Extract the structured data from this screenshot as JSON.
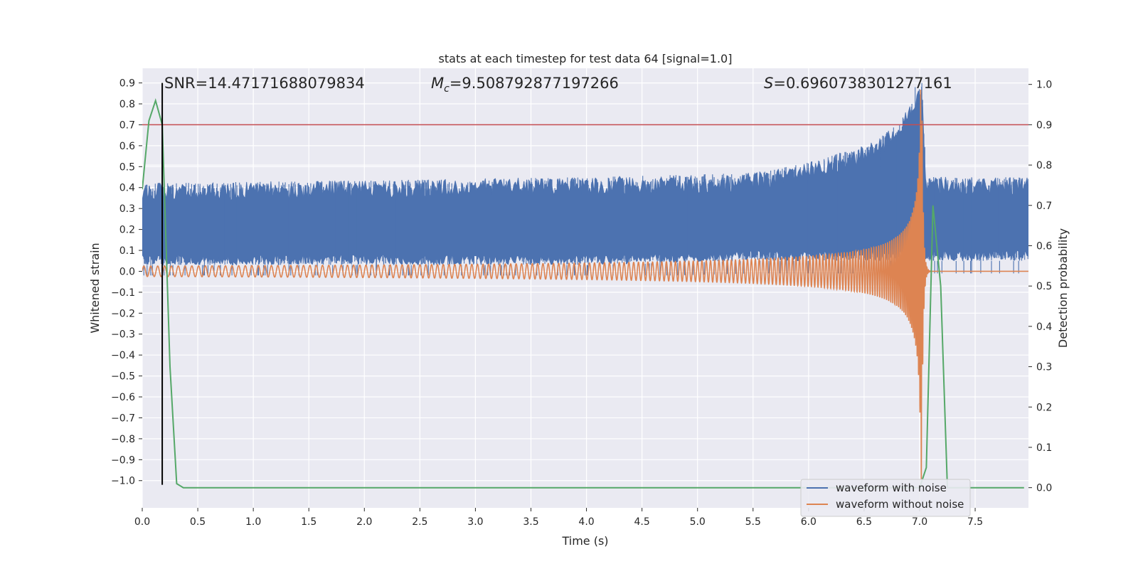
{
  "chart_data": {
    "type": "line",
    "title": "stats at each timestep for test data 64 [signal=1.0]",
    "xlabel": "Time (s)",
    "ylabel": "Whitened strain",
    "y2label": "Detection probability",
    "xlim": [
      0.0,
      7.98
    ],
    "ylim": [
      -1.13,
      0.97
    ],
    "y2lim": [
      -0.05,
      1.04
    ],
    "xticks": [
      0.0,
      0.5,
      1.0,
      1.5,
      2.0,
      2.5,
      3.0,
      3.5,
      4.0,
      4.5,
      5.0,
      5.5,
      6.0,
      6.5,
      7.0,
      7.5
    ],
    "xtick_labels": [
      "0.0",
      "0.5",
      "1.0",
      "1.5",
      "2.0",
      "2.5",
      "3.0",
      "3.5",
      "4.0",
      "4.5",
      "5.0",
      "5.5",
      "6.0",
      "6.5",
      "7.0",
      "7.5"
    ],
    "yticks": [
      0.9,
      0.8,
      0.7,
      0.6,
      0.5,
      0.4,
      0.3,
      0.2,
      0.1,
      0.0,
      -0.1,
      -0.2,
      -0.3,
      -0.4,
      -0.5,
      -0.6,
      -0.7,
      -0.8,
      -0.9,
      -1.0
    ],
    "ytick_labels": [
      "0.9",
      "0.8",
      "0.7",
      "0.6",
      "0.5",
      "0.4",
      "0.3",
      "0.2",
      "0.1",
      "0.0",
      "−0.1",
      "−0.2",
      "−0.3",
      "−0.4",
      "−0.5",
      "−0.6",
      "−0.7",
      "−0.8",
      "−0.9",
      "−1.0"
    ],
    "y2ticks": [
      1.0,
      0.9,
      0.8,
      0.7,
      0.6,
      0.5,
      0.4,
      0.3,
      0.2,
      0.1,
      0.0
    ],
    "y2tick_labels": [
      "1.0",
      "0.9",
      "0.8",
      "0.7",
      "0.6",
      "0.5",
      "0.4",
      "0.3",
      "0.2",
      "0.1",
      "0.0"
    ],
    "grid": true,
    "annotations": {
      "snr": "SNR=14.47171688079834",
      "mc_symbol": "M",
      "mc_subscript": "c",
      "mc_value": "=9.508792877197266",
      "s_symbol": "S",
      "s_value": "=0.6960738301277161"
    },
    "threshold_y2": 0.9,
    "vline_x": 0.18,
    "colors": {
      "noise": "#4c72b0",
      "clean": "#dd8452",
      "probability": "#55a868",
      "threshold": "#c44e52",
      "vline": "#000000",
      "background": "#eaeaf2"
    },
    "legend": {
      "location": "lower-right",
      "entries": [
        "waveform with noise",
        "waveform without noise"
      ]
    },
    "series": [
      {
        "name": "waveform with noise",
        "axis": "left",
        "kind": "noisy-band",
        "band_lower": [
          [
            0.0,
            0.03
          ],
          [
            4.0,
            0.03
          ],
          [
            5.5,
            0.05
          ],
          [
            6.5,
            0.05
          ],
          [
            7.0,
            0.05
          ],
          [
            7.05,
            0.05
          ],
          [
            8.0,
            0.05
          ]
        ],
        "band_upper": [
          [
            0.0,
            0.42
          ],
          [
            4.0,
            0.45
          ],
          [
            5.5,
            0.47
          ],
          [
            6.0,
            0.52
          ],
          [
            6.5,
            0.6
          ],
          [
            6.8,
            0.7
          ],
          [
            6.95,
            0.82
          ],
          [
            7.02,
            0.9
          ],
          [
            7.06,
            0.45
          ],
          [
            8.0,
            0.45
          ]
        ],
        "peak_x": 7.02,
        "peak_y": 0.9
      },
      {
        "name": "waveform without noise",
        "axis": "left",
        "kind": "chirp",
        "t_merger": 7.02,
        "offset": 0.0,
        "amp_start": 0.025,
        "amp_merger": 1.0,
        "freq_start": 16,
        "freq_end": 80,
        "post_merger_level": 0.0
      },
      {
        "name": "detection probability",
        "axis": "right",
        "kind": "line",
        "x": [
          0.0,
          0.06,
          0.12,
          0.18,
          0.25,
          0.31,
          0.37,
          0.5,
          1.0,
          2.0,
          3.0,
          4.0,
          5.0,
          6.0,
          6.94,
          7.0,
          7.06,
          7.12,
          7.19,
          7.25,
          7.31,
          7.4,
          7.94
        ],
        "y": [
          0.74,
          0.91,
          0.96,
          0.9,
          0.3,
          0.01,
          0.0,
          0.0,
          0.0,
          0.0,
          0.0,
          0.0,
          0.0,
          0.0,
          0.0,
          0.0,
          0.05,
          0.7,
          0.5,
          0.0,
          0.0,
          0.0,
          0.0
        ]
      }
    ]
  }
}
